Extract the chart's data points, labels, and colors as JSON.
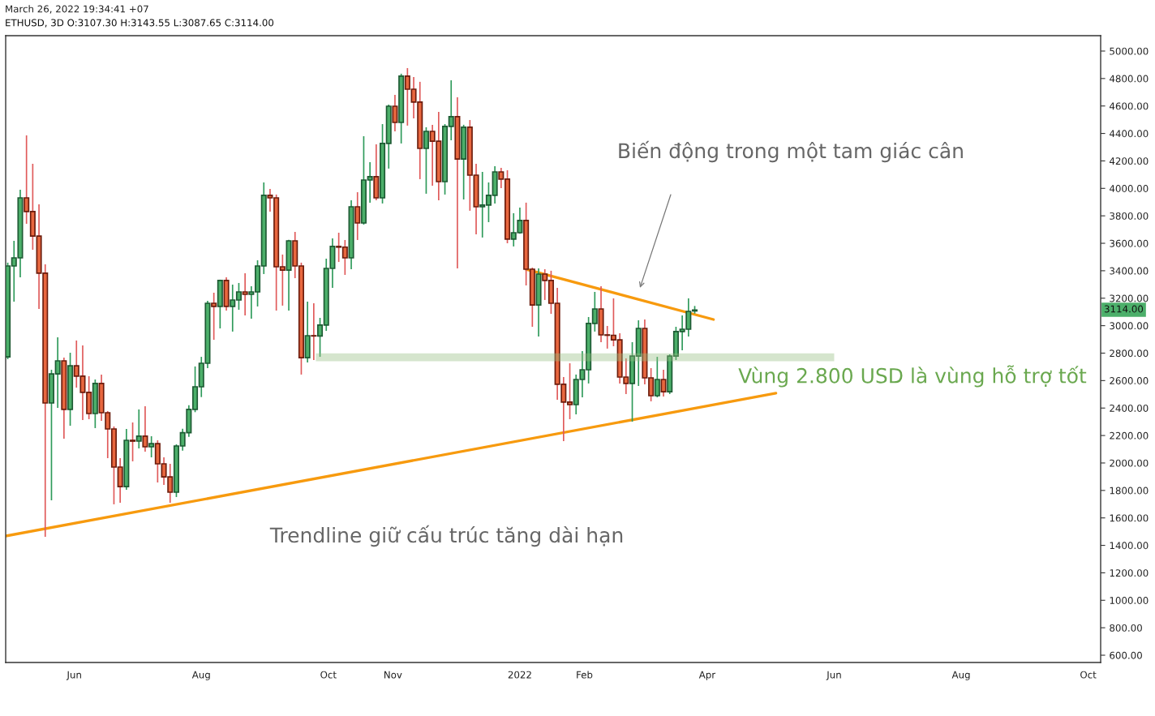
{
  "chart_data": {
    "type": "candlestick",
    "title": "ETHUSD, 3D O:3107.30 H:3143.55 L:3087.65 C:3114.00",
    "annotations": [
      "Biến động trong một tam giác cân",
      "Vùng 2.800 USD là vùng hỗ trợ tốt",
      "Trendline giữ cấu trúc tăng dài hạn",
      "3114.00",
      "March 26, 2022 19:34:41 +07"
    ],
    "x": [
      "2021-04-30",
      "2021-05-03",
      "2021-05-06",
      "2021-05-09",
      "2021-05-12",
      "2021-05-15",
      "2021-05-18",
      "2021-05-21",
      "2021-05-24",
      "2021-05-27",
      "2021-05-30",
      "2021-06-02",
      "2021-06-05",
      "2021-06-08",
      "2021-06-11",
      "2021-06-14",
      "2021-06-17",
      "2021-06-20",
      "2021-06-23",
      "2021-06-26",
      "2021-06-29",
      "2021-07-02",
      "2021-07-05",
      "2021-07-08",
      "2021-07-11",
      "2021-07-14",
      "2021-07-17",
      "2021-07-20",
      "2021-07-23",
      "2021-07-26",
      "2021-07-29",
      "2021-08-01",
      "2021-08-04",
      "2021-08-07",
      "2021-08-10",
      "2021-08-13",
      "2021-08-16",
      "2021-08-19",
      "2021-08-22",
      "2021-08-25",
      "2021-08-28",
      "2021-08-31",
      "2021-09-03",
      "2021-09-06",
      "2021-09-09",
      "2021-09-12",
      "2021-09-15",
      "2021-09-18",
      "2021-09-21",
      "2021-09-24",
      "2021-09-27",
      "2021-09-30",
      "2021-10-03",
      "2021-10-06",
      "2021-10-09",
      "2021-10-12",
      "2021-10-15",
      "2021-10-18",
      "2021-10-21",
      "2021-10-24",
      "2021-10-27",
      "2021-10-30",
      "2021-11-02",
      "2021-11-05",
      "2021-11-08",
      "2021-11-11",
      "2021-11-14",
      "2021-11-17",
      "2021-11-20",
      "2021-11-23",
      "2021-11-26",
      "2021-11-29",
      "2021-12-02",
      "2021-12-05",
      "2021-12-08",
      "2021-12-11",
      "2021-12-14",
      "2021-12-17",
      "2021-12-20",
      "2021-12-23",
      "2021-12-26",
      "2021-12-29",
      "2022-01-01",
      "2022-01-04",
      "2022-01-07",
      "2022-01-10",
      "2022-01-13",
      "2022-01-16",
      "2022-01-19",
      "2022-01-22",
      "2022-01-25",
      "2022-01-28",
      "2022-01-31",
      "2022-02-03",
      "2022-02-06",
      "2022-02-09",
      "2022-02-12",
      "2022-02-15",
      "2022-02-18",
      "2022-02-21",
      "2022-02-24",
      "2022-02-27",
      "2022-03-02",
      "2022-03-05",
      "2022-03-08",
      "2022-03-11",
      "2022-03-14",
      "2022-03-17",
      "2022-03-20",
      "2022-03-23",
      "2022-03-26"
    ],
    "ohlc": [
      [
        2773,
        3459,
        2756,
        3435
      ],
      [
        3435,
        3618,
        3175,
        3494
      ],
      [
        3494,
        3990,
        3352,
        3931
      ],
      [
        3931,
        4386,
        3742,
        3831
      ],
      [
        3831,
        4179,
        3553,
        3653
      ],
      [
        3653,
        3884,
        3122,
        3382
      ],
      [
        3382,
        3447,
        1462,
        2437
      ],
      [
        2437,
        2679,
        1728,
        2649
      ],
      [
        2649,
        2915,
        2401,
        2744
      ],
      [
        2744,
        2768,
        2177,
        2390
      ],
      [
        2390,
        2803,
        2271,
        2708
      ],
      [
        2708,
        2892,
        2549,
        2632
      ],
      [
        2632,
        2856,
        2313,
        2514
      ],
      [
        2514,
        2632,
        2319,
        2360
      ],
      [
        2360,
        2608,
        2254,
        2579
      ],
      [
        2579,
        2644,
        2307,
        2366
      ],
      [
        2366,
        2378,
        2035,
        2248
      ],
      [
        2248,
        2266,
        1699,
        1970
      ],
      [
        1970,
        2035,
        1710,
        1828
      ],
      [
        1828,
        2248,
        1805,
        2165
      ],
      [
        2165,
        2295,
        2012,
        2159
      ],
      [
        2159,
        2390,
        2106,
        2195
      ],
      [
        2195,
        2413,
        2082,
        2118
      ],
      [
        2118,
        2195,
        2041,
        2141
      ],
      [
        2141,
        2165,
        1858,
        1994
      ],
      [
        1994,
        2041,
        1840,
        1899
      ],
      [
        1899,
        1994,
        1710,
        1787
      ],
      [
        1787,
        2136,
        1752,
        2124
      ],
      [
        2124,
        2250,
        2090,
        2220
      ],
      [
        2220,
        2420,
        2190,
        2390
      ],
      [
        2390,
        2703,
        2370,
        2555
      ],
      [
        2555,
        2773,
        2480,
        2726
      ],
      [
        2726,
        3181,
        2690,
        3163
      ],
      [
        3163,
        3240,
        2897,
        3140
      ],
      [
        3140,
        3335,
        2980,
        3329
      ],
      [
        3329,
        3352,
        3110,
        3140
      ],
      [
        3140,
        3299,
        2957,
        3187
      ],
      [
        3187,
        3311,
        3116,
        3246
      ],
      [
        3246,
        3382,
        3075,
        3228
      ],
      [
        3228,
        3287,
        3051,
        3246
      ],
      [
        3246,
        3476,
        3140,
        3435
      ],
      [
        3435,
        4043,
        3376,
        3949
      ],
      [
        3949,
        3996,
        3831,
        3931
      ],
      [
        3931,
        3955,
        3110,
        3429
      ],
      [
        3429,
        3518,
        3146,
        3405
      ],
      [
        3405,
        3625,
        3110,
        3618
      ],
      [
        3618,
        3683,
        3346,
        3435
      ],
      [
        3435,
        3459,
        2644,
        2767
      ],
      [
        2767,
        3175,
        2732,
        2927
      ],
      [
        2927,
        3163,
        2750,
        2925
      ],
      [
        2925,
        3057,
        2773,
        3004
      ],
      [
        3004,
        3488,
        2962,
        3417
      ],
      [
        3417,
        3636,
        3275,
        3577
      ],
      [
        3577,
        3677,
        3464,
        3572
      ],
      [
        3572,
        3624,
        3370,
        3494
      ],
      [
        3494,
        3913,
        3411,
        3866
      ],
      [
        3866,
        3972,
        3624,
        3748
      ],
      [
        3748,
        4380,
        3736,
        4061
      ],
      [
        4061,
        4191,
        3896,
        4085
      ],
      [
        4085,
        4321,
        3913,
        3931
      ],
      [
        3931,
        4468,
        3890,
        4327
      ],
      [
        4327,
        4610,
        4144,
        4598
      ],
      [
        4598,
        4681,
        4415,
        4480
      ],
      [
        4480,
        4835,
        4327,
        4817
      ],
      [
        4817,
        4876,
        4457,
        4722
      ],
      [
        4722,
        4811,
        4510,
        4628
      ],
      [
        4628,
        4776,
        4067,
        4291
      ],
      [
        4291,
        4445,
        3961,
        4415
      ],
      [
        4415,
        4463,
        4020,
        4344
      ],
      [
        4344,
        4557,
        3913,
        4049
      ],
      [
        4049,
        4468,
        3955,
        4451
      ],
      [
        4451,
        4787,
        4350,
        4522
      ],
      [
        4522,
        4663,
        3417,
        4214
      ],
      [
        4214,
        4463,
        3919,
        4445
      ],
      [
        4445,
        4498,
        3837,
        4096
      ],
      [
        4096,
        4179,
        3665,
        3866
      ],
      [
        3866,
        4120,
        3642,
        3878
      ],
      [
        3878,
        4043,
        3754,
        3949
      ],
      [
        3949,
        4161,
        3890,
        4120
      ],
      [
        4120,
        4150,
        4002,
        4067
      ],
      [
        4067,
        4132,
        3600,
        3630
      ],
      [
        3630,
        3819,
        3577,
        3677
      ],
      [
        3677,
        3860,
        3670,
        3766
      ],
      [
        3766,
        3896,
        3293,
        3411
      ],
      [
        3411,
        3423,
        2992,
        3151
      ],
      [
        3151,
        3417,
        2921,
        3376
      ],
      [
        3376,
        3411,
        3187,
        3329
      ],
      [
        3329,
        3400,
        3086,
        3163
      ],
      [
        3163,
        3275,
        2460,
        2573
      ],
      [
        2573,
        2626,
        2159,
        2443
      ],
      [
        2443,
        2726,
        2319,
        2425
      ],
      [
        2425,
        2644,
        2354,
        2608
      ],
      [
        2608,
        2815,
        2478,
        2679
      ],
      [
        2679,
        3063,
        2579,
        3016
      ],
      [
        3016,
        3246,
        2957,
        3122
      ],
      [
        3122,
        3287,
        2880,
        2933
      ],
      [
        2933,
        2998,
        2833,
        2930
      ],
      [
        2930,
        3199,
        2850,
        2897
      ],
      [
        2897,
        2945,
        2579,
        2626
      ],
      [
        2626,
        2762,
        2502,
        2579
      ],
      [
        2579,
        2880,
        2301,
        2779
      ],
      [
        2779,
        3039,
        2561,
        2980
      ],
      [
        2980,
        3045,
        2573,
        2620
      ],
      [
        2620,
        2691,
        2449,
        2490
      ],
      [
        2490,
        2773,
        2478,
        2608
      ],
      [
        2608,
        2679,
        2484,
        2519
      ],
      [
        2519,
        2791,
        2502,
        2779
      ],
      [
        2779,
        2992,
        2750,
        2957
      ],
      [
        2957,
        3075,
        2821,
        2974
      ],
      [
        2974,
        3199,
        2921,
        3104
      ],
      [
        3107.3,
        3143.55,
        3087.65,
        3114.0
      ]
    ],
    "series": [
      {
        "type": "line",
        "color": "#d5e5cd",
        "x": [
          "2021-09-25",
          "2022-06-01"
        ],
        "values": [
          2770,
          2770
        ]
      },
      {
        "type": "line",
        "color": "#f79a0e",
        "x": [
          "2021-04-29",
          "2022-05-04"
        ],
        "values": [
          1468,
          2508
        ]
      },
      {
        "type": "line",
        "color": "#f79a0e",
        "x": [
          "2022-01-04",
          "2022-04-04"
        ],
        "values": [
          3411,
          3045
        ]
      }
    ],
    "xlim": [
      "2021-04-29",
      "2022-10-07"
    ],
    "xticks": [
      {
        "value": "2021-06-01",
        "label": "Jun"
      },
      {
        "value": "2021-08-01",
        "label": "Aug"
      },
      {
        "value": "2021-10-01",
        "label": "Oct"
      },
      {
        "value": "2021-11-01",
        "label": "Nov"
      },
      {
        "value": "2022-01-01",
        "label": "2022"
      },
      {
        "value": "2022-02-01",
        "label": "Feb"
      },
      {
        "value": "2022-04-01",
        "label": "Apr"
      },
      {
        "value": "2022-06-01",
        "label": "Jun"
      },
      {
        "value": "2022-08-01",
        "label": "Aug"
      },
      {
        "value": "2022-10-01",
        "label": "Oct"
      }
    ],
    "ylim": [
      547,
      5112
    ],
    "yticks": [
      {
        "value": 600,
        "label": "600.00"
      },
      {
        "value": 800,
        "label": "800.00"
      },
      {
        "value": 1000,
        "label": "1000.00"
      },
      {
        "value": 1200,
        "label": "1200.00"
      },
      {
        "value": 1400,
        "label": "1400.00"
      },
      {
        "value": 1600,
        "label": "1600.00"
      },
      {
        "value": 1800,
        "label": "1800.00"
      },
      {
        "value": 2000,
        "label": "2000.00"
      },
      {
        "value": 2200,
        "label": "2200.00"
      },
      {
        "value": 2400,
        "label": "2400.00"
      },
      {
        "value": 2600,
        "label": "2600.00"
      },
      {
        "value": 2800,
        "label": "2800.00"
      },
      {
        "value": 3000,
        "label": "3000.00"
      },
      {
        "value": 3200,
        "label": "3200.00"
      },
      {
        "value": 3400,
        "label": "3400.00"
      },
      {
        "value": 3600,
        "label": "3600.00"
      },
      {
        "value": 3800,
        "label": "3800.00"
      },
      {
        "value": 4000,
        "label": "4000.00"
      },
      {
        "value": 4200,
        "label": "4200.00"
      },
      {
        "value": 4400,
        "label": "4400.00"
      },
      {
        "value": 4600,
        "label": "4600.00"
      },
      {
        "value": 4800,
        "label": "4800.00"
      },
      {
        "value": 5000,
        "label": "5000.00"
      }
    ]
  }
}
